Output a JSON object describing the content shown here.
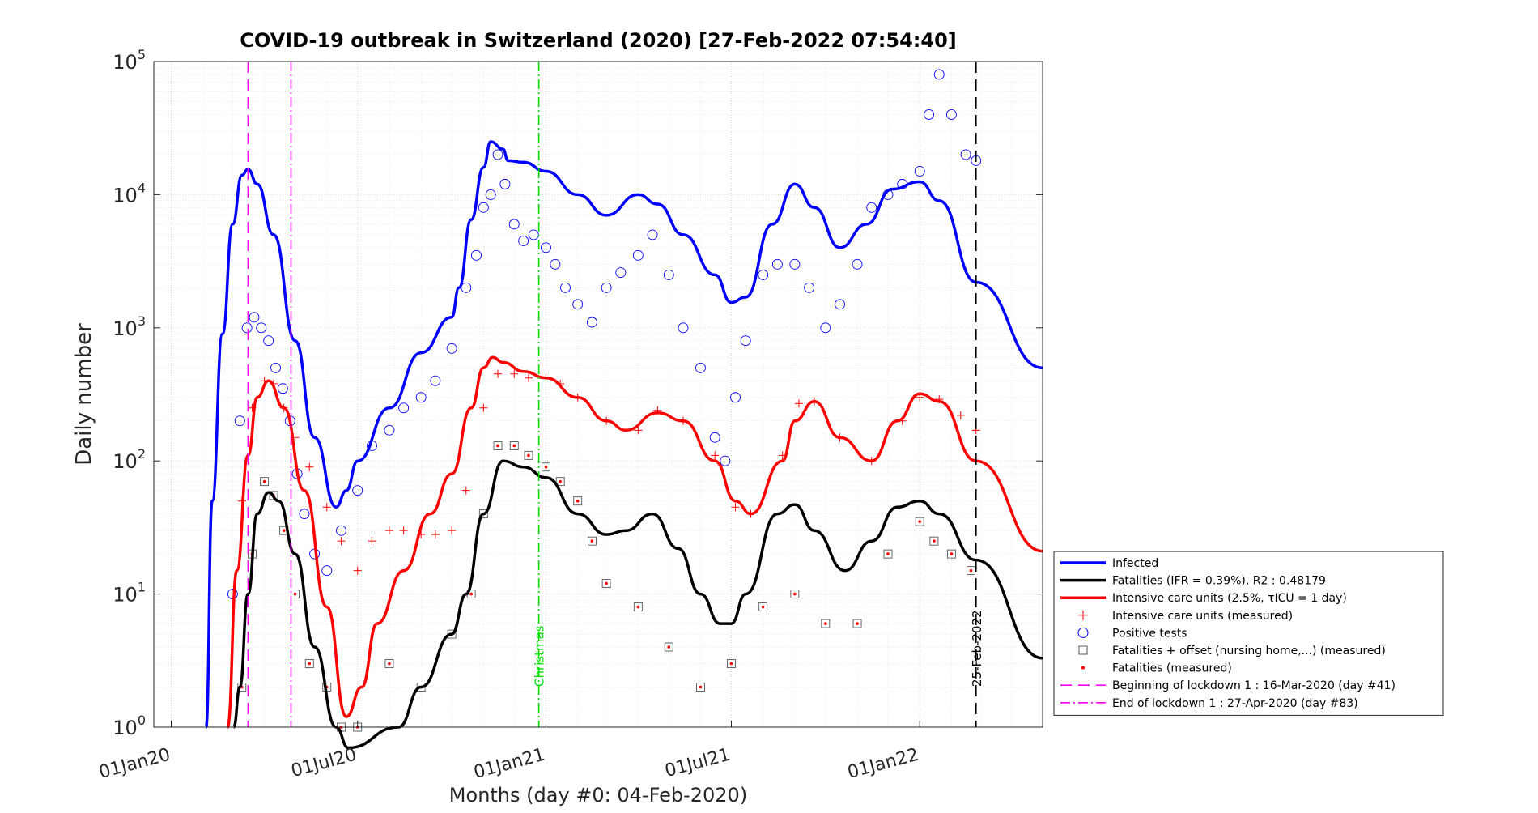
{
  "chart_data": {
    "type": "line",
    "title": "COVID-19 outbreak in Switzerland (2020) [27-Feb-2022 07:54:40]",
    "xlabel": "Months (day #0: 04-Feb-2020)",
    "ylabel": "Daily number",
    "yscale": "log",
    "ylim": [
      1,
      100000
    ],
    "xlim": [
      "2019-12-15",
      "2022-05-01"
    ],
    "grid": true,
    "legend_position": "lower-right-outside",
    "x_ticks": [
      "2020-01-01",
      "2020-07-01",
      "2021-01-01",
      "2021-07-01",
      "2022-01-01"
    ],
    "x_tick_labels": [
      "01Jan20",
      "01Jul20",
      "01Jan21",
      "01Jul21",
      "01Jan22"
    ],
    "y_tick_labels": [
      {
        "base": "10",
        "exp": "0",
        "value": 1
      },
      {
        "base": "10",
        "exp": "1",
        "value": 10
      },
      {
        "base": "10",
        "exp": "2",
        "value": 100
      },
      {
        "base": "10",
        "exp": "3",
        "value": 1000
      },
      {
        "base": "10",
        "exp": "4",
        "value": 10000
      },
      {
        "base": "10",
        "exp": "5",
        "value": 100000
      }
    ],
    "series": [
      {
        "name": "Infected",
        "kind": "line",
        "color": "#0000ff",
        "x": [
          "2020-02-04",
          "2020-02-10",
          "2020-02-20",
          "2020-03-01",
          "2020-03-10",
          "2020-03-16",
          "2020-03-25",
          "2020-04-10",
          "2020-05-01",
          "2020-05-20",
          "2020-06-10",
          "2020-06-20",
          "2020-07-01",
          "2020-08-01",
          "2020-09-01",
          "2020-10-01",
          "2020-10-08",
          "2020-10-20",
          "2020-11-01",
          "2020-11-08",
          "2020-11-20",
          "2020-11-25",
          "2020-12-10",
          "2021-01-01",
          "2021-02-01",
          "2021-03-01",
          "2021-04-01",
          "2021-04-20",
          "2021-05-15",
          "2021-06-15",
          "2021-07-01",
          "2021-07-15",
          "2021-08-10",
          "2021-09-01",
          "2021-09-20",
          "2021-10-15",
          "2021-11-10",
          "2021-12-05",
          "2022-01-01",
          "2022-01-20",
          "2022-02-25",
          "2022-05-01"
        ],
        "y": [
          1,
          50,
          900,
          6000,
          14000,
          15500,
          12000,
          5000,
          800,
          150,
          45,
          60,
          100,
          250,
          650,
          1200,
          2000,
          6500,
          16000,
          25000,
          22000,
          18000,
          17500,
          15000,
          10000,
          7000,
          10000,
          8500,
          5000,
          2500,
          1550,
          1700,
          6000,
          12000,
          8000,
          4000,
          6000,
          11000,
          12500,
          9000,
          2200,
          500
        ]
      },
      {
        "name": "Fatalities (IFR = 0.39%), R2 : 0.48179",
        "kind": "line",
        "color": "#000000",
        "x": [
          "2020-03-02",
          "2020-03-08",
          "2020-03-16",
          "2020-03-25",
          "2020-04-05",
          "2020-04-15",
          "2020-05-01",
          "2020-05-20",
          "2020-06-10",
          "2020-06-22",
          "2020-08-10",
          "2020-09-01",
          "2020-10-01",
          "2020-10-15",
          "2020-11-01",
          "2020-11-20",
          "2020-12-10",
          "2021-01-01",
          "2021-02-01",
          "2021-03-01",
          "2021-03-20",
          "2021-04-15",
          "2021-05-10",
          "2021-06-01",
          "2021-06-20",
          "2021-07-01",
          "2021-07-15",
          "2021-08-15",
          "2021-09-01",
          "2021-09-20",
          "2021-10-20",
          "2021-11-15",
          "2021-12-10",
          "2022-01-01",
          "2022-01-20",
          "2022-02-25",
          "2022-05-01"
        ],
        "y": [
          1,
          2,
          10,
          40,
          58,
          50,
          20,
          4,
          1,
          0.7,
          1,
          2,
          5,
          10,
          40,
          100,
          90,
          75,
          40,
          28,
          30,
          40,
          22,
          10,
          6,
          6,
          10,
          40,
          47,
          30,
          15,
          25,
          45,
          50,
          40,
          18,
          3.3
        ]
      },
      {
        "name": "Intensive care units (2.5%, τICU = 1 day)",
        "kind": "line",
        "color": "#ff0000",
        "x": [
          "2020-02-25",
          "2020-03-05",
          "2020-03-16",
          "2020-03-25",
          "2020-04-05",
          "2020-04-20",
          "2020-05-10",
          "2020-06-01",
          "2020-06-20",
          "2020-07-05",
          "2020-07-20",
          "2020-08-15",
          "2020-09-10",
          "2020-10-01",
          "2020-10-20",
          "2020-11-01",
          "2020-11-10",
          "2020-11-20",
          "2020-12-10",
          "2021-01-01",
          "2021-02-01",
          "2021-03-01",
          "2021-03-20",
          "2021-04-20",
          "2021-05-15",
          "2021-06-15",
          "2021-07-05",
          "2021-07-20",
          "2021-08-20",
          "2021-09-01",
          "2021-09-20",
          "2021-10-15",
          "2021-11-15",
          "2021-12-10",
          "2022-01-01",
          "2022-01-20",
          "2022-02-25",
          "2022-05-01"
        ],
        "y": [
          1,
          15,
          110,
          300,
          400,
          250,
          60,
          8,
          1.2,
          2,
          6,
          15,
          40,
          80,
          250,
          500,
          600,
          550,
          470,
          420,
          300,
          200,
          170,
          230,
          200,
          100,
          50,
          40,
          100,
          200,
          280,
          150,
          100,
          200,
          320,
          280,
          100,
          21
        ]
      },
      {
        "name": "Intensive care units (measured)",
        "kind": "scatter",
        "marker": "+",
        "color": "#ff0000",
        "x": [
          "2020-03-10",
          "2020-03-20",
          "2020-04-01",
          "2020-04-10",
          "2020-04-20",
          "2020-05-01",
          "2020-05-15",
          "2020-06-01",
          "2020-06-15",
          "2020-07-01",
          "2020-07-15",
          "2020-08-01",
          "2020-08-15",
          "2020-09-01",
          "2020-09-15",
          "2020-10-01",
          "2020-10-15",
          "2020-11-01",
          "2020-11-15",
          "2020-12-01",
          "2020-12-15",
          "2021-01-01",
          "2021-01-15",
          "2021-02-01",
          "2021-03-01",
          "2021-04-01",
          "2021-04-20",
          "2021-05-15",
          "2021-06-15",
          "2021-07-05",
          "2021-07-20",
          "2021-08-20",
          "2021-09-05",
          "2021-09-20",
          "2021-10-15",
          "2021-11-15",
          "2021-12-15",
          "2022-01-01",
          "2022-01-20",
          "2022-02-10",
          "2022-02-25"
        ],
        "y": [
          50,
          250,
          400,
          380,
          250,
          150,
          90,
          45,
          25,
          15,
          25,
          30,
          30,
          28,
          28,
          30,
          60,
          250,
          450,
          450,
          420,
          420,
          380,
          300,
          200,
          170,
          240,
          200,
          110,
          45,
          40,
          110,
          270,
          280,
          150,
          100,
          200,
          300,
          290,
          220,
          170
        ]
      },
      {
        "name": "Positive tests",
        "kind": "scatter",
        "marker": "o",
        "color": "#0000ff",
        "x": [
          "2020-03-01",
          "2020-03-08",
          "2020-03-15",
          "2020-03-22",
          "2020-03-29",
          "2020-04-05",
          "2020-04-12",
          "2020-04-19",
          "2020-04-26",
          "2020-05-03",
          "2020-05-10",
          "2020-05-20",
          "2020-06-01",
          "2020-06-15",
          "2020-07-01",
          "2020-07-15",
          "2020-08-01",
          "2020-08-15",
          "2020-09-01",
          "2020-09-15",
          "2020-10-01",
          "2020-10-15",
          "2020-10-25",
          "2020-11-01",
          "2020-11-08",
          "2020-11-15",
          "2020-11-22",
          "2020-12-01",
          "2020-12-10",
          "2020-12-20",
          "2021-01-01",
          "2021-01-10",
          "2021-01-20",
          "2021-02-01",
          "2021-02-15",
          "2021-03-01",
          "2021-03-15",
          "2021-04-01",
          "2021-04-15",
          "2021-05-01",
          "2021-05-15",
          "2021-06-01",
          "2021-06-15",
          "2021-06-25",
          "2021-07-05",
          "2021-07-15",
          "2021-08-01",
          "2021-08-15",
          "2021-09-01",
          "2021-09-15",
          "2021-10-01",
          "2021-10-15",
          "2021-11-01",
          "2021-11-15",
          "2021-12-01",
          "2021-12-15",
          "2022-01-01",
          "2022-01-10",
          "2022-01-20",
          "2022-02-01",
          "2022-02-15",
          "2022-02-25"
        ],
        "y": [
          10,
          200,
          1000,
          1200,
          1000,
          800,
          500,
          350,
          200,
          80,
          40,
          20,
          15,
          30,
          60,
          130,
          170,
          250,
          300,
          400,
          700,
          2000,
          3500,
          8000,
          10000,
          20000,
          12000,
          6000,
          4500,
          5000,
          4000,
          3000,
          2000,
          1500,
          1100,
          2000,
          2600,
          3500,
          5000,
          2500,
          1000,
          500,
          150,
          100,
          300,
          800,
          2500,
          3000,
          3000,
          2000,
          1000,
          1500,
          3000,
          8000,
          10000,
          12000,
          15000,
          40000,
          80000,
          40000,
          20000,
          18000
        ]
      },
      {
        "name": "Fatalities + offset (nursing home,...) (measured)",
        "kind": "scatter",
        "marker": "square",
        "color": "#555555",
        "x": [
          "2020-03-10",
          "2020-03-20",
          "2020-04-01",
          "2020-04-10",
          "2020-04-20",
          "2020-05-01",
          "2020-05-15",
          "2020-06-01",
          "2020-06-15",
          "2020-07-01",
          "2020-08-01",
          "2020-09-01",
          "2020-10-01",
          "2020-10-20",
          "2020-11-01",
          "2020-11-15",
          "2020-12-01",
          "2020-12-15",
          "2021-01-01",
          "2021-01-15",
          "2021-02-01",
          "2021-02-15",
          "2021-03-01",
          "2021-04-01",
          "2021-05-01",
          "2021-06-01",
          "2021-07-01",
          "2021-08-01",
          "2021-09-01",
          "2021-10-01",
          "2021-11-01",
          "2021-12-01",
          "2022-01-01",
          "2022-01-15",
          "2022-02-01",
          "2022-02-20"
        ],
        "y": [
          2,
          20,
          70,
          55,
          30,
          10,
          3,
          2,
          1,
          1,
          3,
          2,
          5,
          10,
          40,
          130,
          130,
          110,
          90,
          70,
          50,
          25,
          12,
          8,
          4,
          2,
          3,
          8,
          10,
          6,
          6,
          20,
          35,
          25,
          20,
          15
        ]
      },
      {
        "name": "Fatalities (measured)",
        "kind": "scatter",
        "marker": "dot",
        "color": "#ff0000",
        "x": [
          "2020-03-10",
          "2020-03-20",
          "2020-04-01",
          "2020-04-10",
          "2020-04-20",
          "2020-05-01",
          "2020-05-15",
          "2020-06-01",
          "2020-06-15",
          "2020-07-01",
          "2020-08-01",
          "2020-09-01",
          "2020-10-01",
          "2020-10-20",
          "2020-11-01",
          "2020-11-15",
          "2020-12-01",
          "2020-12-15",
          "2021-01-01",
          "2021-01-15",
          "2021-02-01",
          "2021-02-15",
          "2021-03-01",
          "2021-04-01",
          "2021-05-01",
          "2021-06-01",
          "2021-07-01",
          "2021-08-01",
          "2021-09-01",
          "2021-10-01",
          "2021-11-01",
          "2021-12-01",
          "2022-01-01",
          "2022-01-15",
          "2022-02-01",
          "2022-02-20"
        ],
        "y": [
          2,
          20,
          70,
          55,
          30,
          10,
          3,
          2,
          1,
          1,
          3,
          2,
          5,
          10,
          40,
          130,
          130,
          110,
          90,
          70,
          50,
          25,
          12,
          8,
          4,
          2,
          3,
          8,
          10,
          6,
          6,
          20,
          35,
          25,
          20,
          15
        ]
      }
    ],
    "vlines": [
      {
        "name": "Beginning of lockdown 1 : 16-Mar-2020 (day #41)",
        "x": "2020-03-16",
        "color": "#ff00ff",
        "style": "dash"
      },
      {
        "name": "End of lockdown 1 : 27-Apr-2020 (day #83)",
        "x": "2020-04-27",
        "color": "#ff00ff",
        "style": "dashdot"
      },
      {
        "label": "Christmas",
        "x": "2020-12-25",
        "color": "#00dd00",
        "style": "dashdot"
      },
      {
        "label": "25-Feb-2022",
        "x": "2022-02-25",
        "color": "#000000",
        "style": "dash"
      }
    ],
    "legend": [
      "Infected",
      "Fatalities (IFR = 0.39%), R2 : 0.48179",
      "Intensive care units (2.5%, τICU = 1 day)",
      "Intensive care units (measured)",
      "Positive tests",
      "Fatalities + offset (nursing home,...) (measured)",
      "Fatalities (measured)",
      "Beginning of lockdown 1 : 16-Mar-2020 (day #41)",
      "End of lockdown 1 : 27-Apr-2020 (day #83)"
    ]
  }
}
